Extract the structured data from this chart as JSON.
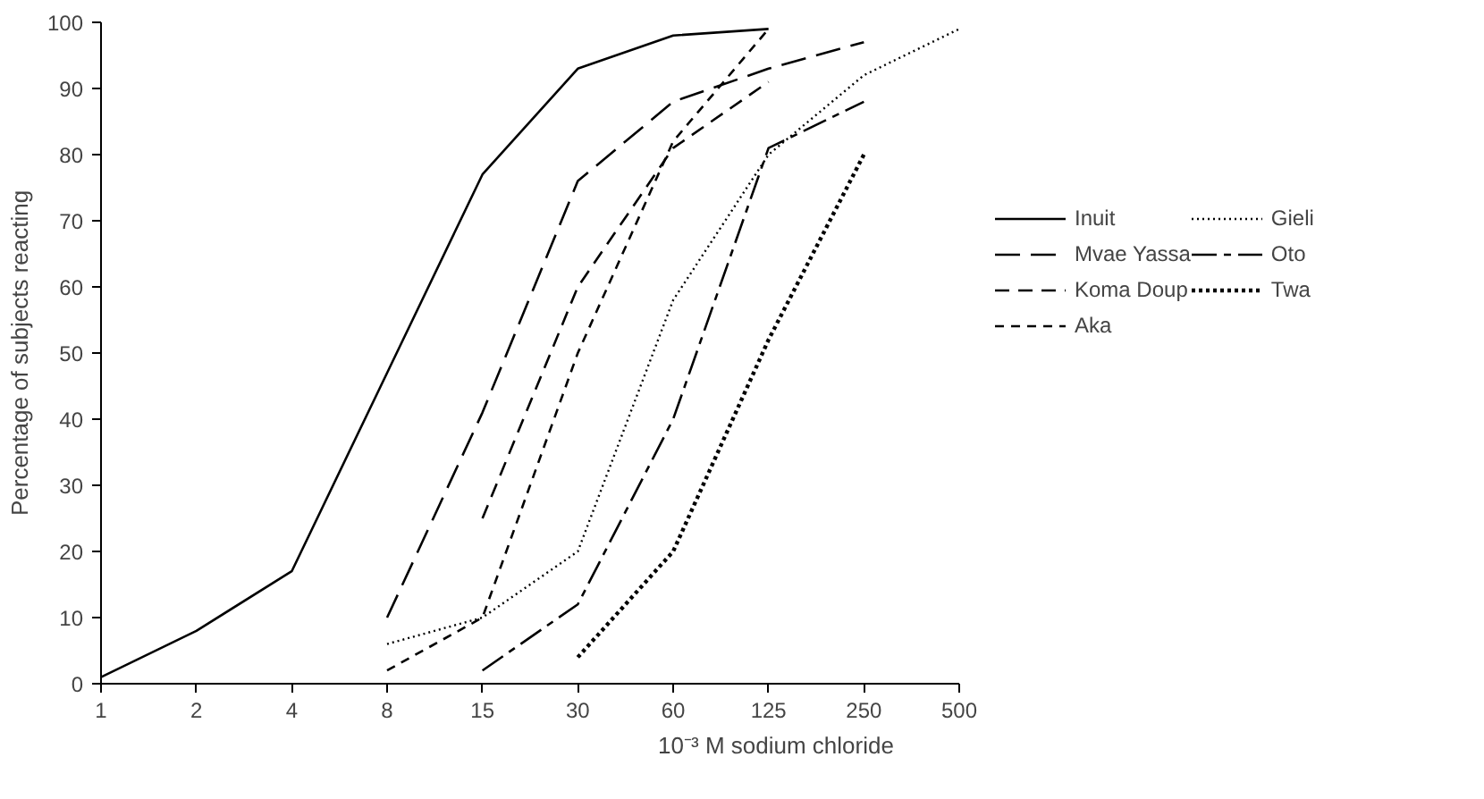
{
  "chart_data": {
    "type": "line",
    "xlabel": "10⁻³ M sodium chloride",
    "ylabel": "Percentage of subjects reacting",
    "categories": [
      "1",
      "2",
      "4",
      "8",
      "15",
      "30",
      "60",
      "125",
      "250",
      "500"
    ],
    "ylim": [
      0,
      100
    ],
    "yticks": [
      0,
      10,
      20,
      30,
      40,
      50,
      60,
      70,
      80,
      90,
      100
    ],
    "legend": "right",
    "series": [
      {
        "name": "Inuit",
        "color": "#000000",
        "line_style": "solid",
        "values": [
          1,
          8,
          17,
          47,
          77,
          93,
          98,
          99,
          null,
          null
        ]
      },
      {
        "name": "Mvae Yassa",
        "color": "#000000",
        "line_style": "longdash",
        "values": [
          null,
          null,
          null,
          10,
          41,
          76,
          88,
          93,
          97,
          null
        ]
      },
      {
        "name": "Koma Doup",
        "color": "#000000",
        "line_style": "dashed",
        "values": [
          null,
          null,
          null,
          null,
          25,
          60,
          81,
          91,
          null,
          null
        ]
      },
      {
        "name": "Aka",
        "color": "#000000",
        "line_style": "shortdash",
        "values": [
          null,
          null,
          null,
          2,
          10,
          50,
          82,
          99,
          null,
          null
        ]
      },
      {
        "name": "Gieli",
        "color": "#000000",
        "line_style": "dotted",
        "values": [
          null,
          null,
          null,
          6,
          10,
          20,
          58,
          80,
          92,
          99
        ]
      },
      {
        "name": "Oto",
        "color": "#000000",
        "line_style": "dashdot",
        "values": [
          null,
          null,
          null,
          null,
          2,
          12,
          40,
          81,
          88,
          null
        ]
      },
      {
        "name": "Twa",
        "color": "#000000",
        "line_style": "heavydotted",
        "values": [
          null,
          null,
          null,
          null,
          null,
          4,
          20,
          52,
          80,
          null
        ]
      }
    ]
  }
}
